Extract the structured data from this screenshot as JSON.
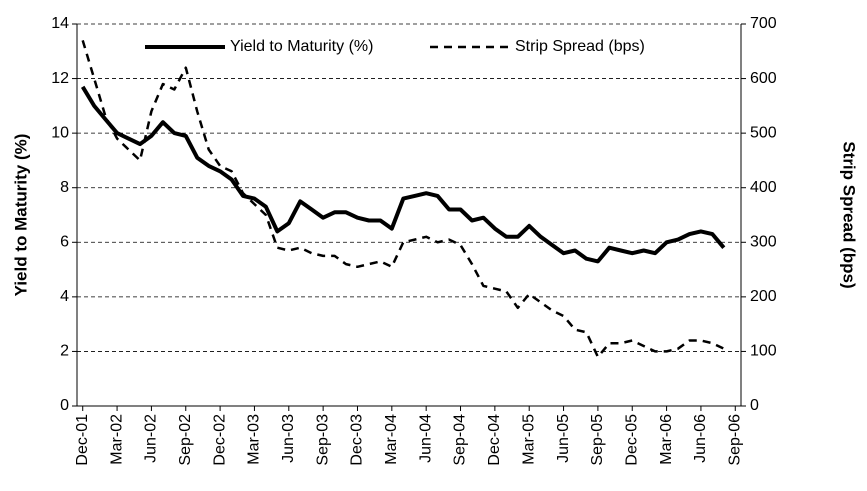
{
  "chart_data": {
    "type": "line",
    "y_label": "Yield to Maturity (%)",
    "y2_label": "Strip Spread (bps)",
    "categories": [
      "Dec-01",
      null,
      null,
      "Mar-02",
      null,
      null,
      "Jun-02",
      null,
      null,
      "Sep-02",
      null,
      null,
      "Dec-02",
      null,
      null,
      "Mar-03",
      null,
      null,
      "Jun-03",
      null,
      null,
      "Sep-03",
      null,
      null,
      "Dec-03",
      null,
      null,
      "Mar-04",
      null,
      null,
      "Jun-04",
      null,
      null,
      "Sep-04",
      null,
      null,
      "Dec-04",
      null,
      null,
      "Mar-05",
      null,
      null,
      "Jun-05",
      null,
      null,
      "Sep-05",
      null,
      null,
      "Dec-05",
      null,
      null,
      "Mar-06",
      null,
      null,
      "Jun-06",
      null,
      null,
      "Sep-06"
    ],
    "series": [
      {
        "name": "Yield to Maturity (%)",
        "color": "#000000",
        "line_style": "solid",
        "values": [
          11.7,
          11.0,
          10.5,
          10.0,
          9.8,
          9.6,
          9.9,
          10.4,
          10.0,
          9.9,
          9.1,
          8.8,
          8.6,
          8.3,
          7.7,
          7.6,
          7.3,
          6.4,
          6.7,
          7.5,
          7.2,
          6.9,
          7.1,
          7.1,
          6.9,
          6.8,
          6.8,
          6.5,
          7.6,
          7.7,
          7.8,
          7.7,
          7.2,
          7.2,
          6.8,
          6.9,
          6.5,
          6.2,
          6.2,
          6.6,
          6.2,
          5.9,
          5.6,
          5.7,
          5.4,
          5.3,
          5.8,
          5.7,
          5.6,
          5.7,
          5.6,
          6.0,
          6.1,
          6.3,
          6.4,
          6.3,
          5.8,
          null
        ]
      },
      {
        "name": "Strip Spread (bps)",
        "color": "#000000",
        "line_style": "dashed",
        "axis": "y2",
        "values": [
          670,
          600,
          530,
          490,
          470,
          450,
          540,
          590,
          580,
          620,
          540,
          470,
          440,
          430,
          390,
          370,
          350,
          290,
          285,
          290,
          280,
          275,
          275,
          260,
          255,
          260,
          265,
          255,
          300,
          305,
          310,
          300,
          305,
          295,
          260,
          220,
          215,
          210,
          180,
          205,
          190,
          175,
          165,
          140,
          135,
          90,
          115,
          115,
          120,
          110,
          100,
          100,
          105,
          120,
          120,
          115,
          105,
          null
        ]
      }
    ],
    "ylim": [
      0,
      14
    ],
    "yticks": [
      0,
      2,
      4,
      6,
      8,
      10,
      12,
      14
    ],
    "y2lim": [
      0,
      700
    ],
    "y2ticks": [
      0,
      100,
      200,
      300,
      400,
      500,
      600,
      700
    ],
    "grid": true,
    "legend": "top"
  }
}
